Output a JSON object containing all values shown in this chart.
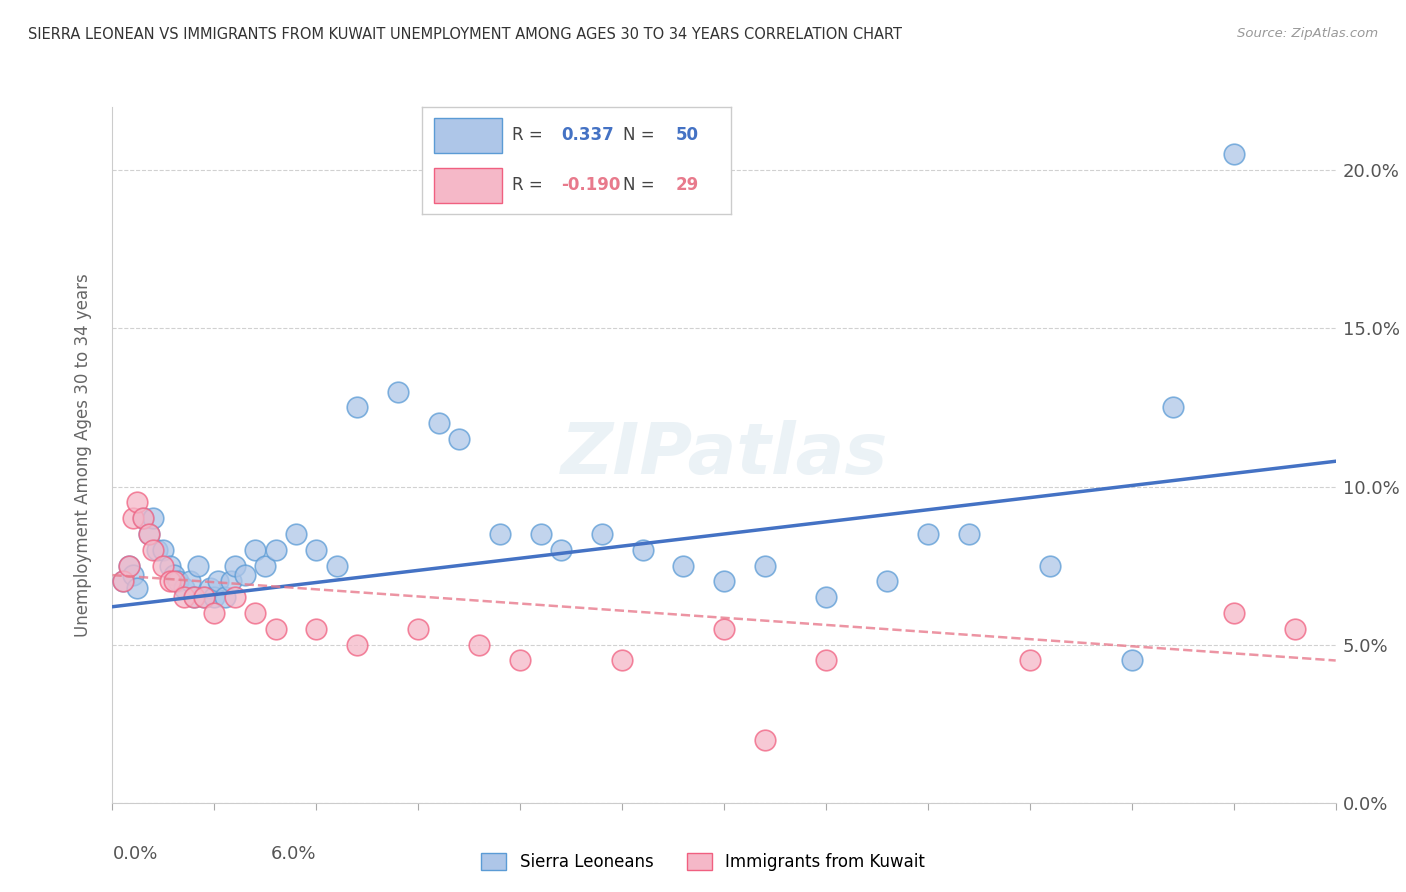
{
  "title": "SIERRA LEONEAN VS IMMIGRANTS FROM KUWAIT UNEMPLOYMENT AMONG AGES 30 TO 34 YEARS CORRELATION CHART",
  "source": "Source: ZipAtlas.com",
  "ylabel": "Unemployment Among Ages 30 to 34 years",
  "blue_color": "#aec6e8",
  "pink_color": "#f5b8c8",
  "blue_edge_color": "#5b9bd5",
  "pink_edge_color": "#f06080",
  "blue_line_color": "#4472c4",
  "pink_line_color": "#e87a8c",
  "watermark": "ZIPatlas",
  "xlim": [
    0.0,
    6.0
  ],
  "ylim": [
    0.0,
    22.0
  ],
  "yticks": [
    0.0,
    5.0,
    10.0,
    15.0,
    20.0
  ],
  "ytick_labels": [
    "0.0%",
    "5.0%",
    "10.0%",
    "15.0%",
    "20.0%"
  ],
  "blue_R": "0.337",
  "blue_N": "50",
  "pink_R": "-0.190",
  "pink_N": "29",
  "blue_scatter_x": [
    0.05,
    0.08,
    0.1,
    0.12,
    0.15,
    0.18,
    0.2,
    0.22,
    0.25,
    0.28,
    0.3,
    0.32,
    0.35,
    0.38,
    0.4,
    0.42,
    0.45,
    0.48,
    0.5,
    0.52,
    0.55,
    0.58,
    0.6,
    0.65,
    0.7,
    0.75,
    0.8,
    0.9,
    1.0,
    1.1,
    1.2,
    1.4,
    1.6,
    1.7,
    1.9,
    2.1,
    2.2,
    2.4,
    2.6,
    2.8,
    3.0,
    3.2,
    3.5,
    3.8,
    4.0,
    4.2,
    4.6,
    5.0,
    5.2,
    5.5
  ],
  "blue_scatter_y": [
    7.0,
    7.5,
    7.2,
    6.8,
    9.0,
    8.5,
    9.0,
    8.0,
    8.0,
    7.5,
    7.2,
    7.0,
    6.8,
    7.0,
    6.5,
    7.5,
    6.5,
    6.8,
    6.5,
    7.0,
    6.5,
    7.0,
    7.5,
    7.2,
    8.0,
    7.5,
    8.0,
    8.5,
    8.0,
    7.5,
    12.5,
    13.0,
    12.0,
    11.5,
    8.5,
    8.5,
    8.0,
    8.5,
    8.0,
    7.5,
    7.0,
    7.5,
    6.5,
    7.0,
    8.5,
    8.5,
    7.5,
    4.5,
    12.5,
    20.5
  ],
  "pink_scatter_x": [
    0.05,
    0.08,
    0.1,
    0.12,
    0.15,
    0.18,
    0.2,
    0.25,
    0.28,
    0.3,
    0.35,
    0.4,
    0.45,
    0.5,
    0.6,
    0.7,
    0.8,
    1.0,
    1.2,
    1.5,
    1.8,
    2.0,
    2.5,
    3.0,
    3.2,
    3.5,
    4.5,
    5.5,
    5.8
  ],
  "pink_scatter_y": [
    7.0,
    7.5,
    9.0,
    9.5,
    9.0,
    8.5,
    8.0,
    7.5,
    7.0,
    7.0,
    6.5,
    6.5,
    6.5,
    6.0,
    6.5,
    6.0,
    5.5,
    5.5,
    5.0,
    5.5,
    5.0,
    4.5,
    4.5,
    5.5,
    2.0,
    4.5,
    4.5,
    6.0,
    5.5
  ],
  "blue_trend_x": [
    0.0,
    6.0
  ],
  "blue_trend_y": [
    6.2,
    10.8
  ],
  "pink_trend_x": [
    0.0,
    6.0
  ],
  "pink_trend_y": [
    7.2,
    4.5
  ]
}
